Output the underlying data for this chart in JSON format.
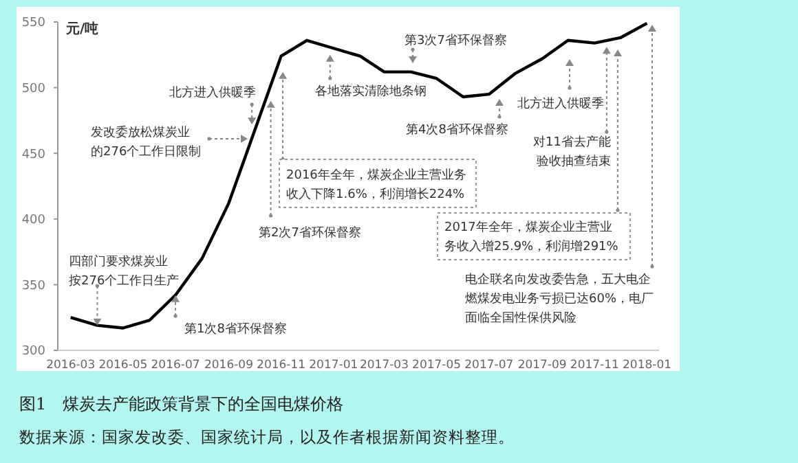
{
  "chart_data": {
    "type": "line",
    "title": "图1　煤炭去产能政策背景下的全国电煤价格",
    "ylabel": "元/吨",
    "x": [
      "2016-03",
      "2016-04",
      "2016-05",
      "2016-06",
      "2016-07",
      "2016-08",
      "2016-09",
      "2016-10",
      "2016-11",
      "2016-12",
      "2017-01",
      "2017-02",
      "2017-03",
      "2017-04",
      "2017-05",
      "2017-06",
      "2017-07",
      "2017-08",
      "2017-09",
      "2017-10",
      "2017-11",
      "2017-12",
      "2018-01"
    ],
    "series": [
      {
        "color": "#000000",
        "values": [
          325,
          319,
          317,
          323,
          342,
          370,
          412,
          467,
          524,
          536,
          530,
          524,
          512,
          512,
          507,
          493,
          495,
          511,
          522,
          536,
          534,
          538,
          549
        ]
      }
    ],
    "xlim": [
      "2016-02-15",
      "2018-01-15"
    ],
    "xticks": [
      "2016-03",
      "2016-05",
      "2016-07",
      "2016-09",
      "2016-11",
      "2017-01",
      "2017-03",
      "2017-05",
      "2017-07",
      "2017-09",
      "2017-11",
      "2018-01"
    ],
    "ylim": [
      300,
      550
    ],
    "yticks": [
      300,
      350,
      400,
      450,
      500,
      550
    ],
    "marker": "none",
    "line_style": "solid",
    "annotations": [
      {
        "text": "四部门要求煤炭业按276个工作日生产",
        "x": "2016-04",
        "y": 319
      },
      {
        "text": "第1次8省环保督察",
        "x": "2016-07",
        "y": 342
      },
      "发改委放松煤炭业的276个工作日限制",
      {
        "text": "北方进入供暖季",
        "x": "2016-09-28",
        "y": 472
      },
      {
        "text": "第2次7省环保督察",
        "x": "2016-10-20",
        "y": 490
      },
      {
        "text": "2016年全年，煤炭企业主营业务收入下降1.6%，利润增长224%",
        "x": "2016-11-03",
        "y": 512
      },
      {
        "text": "各地落实清除地条钢",
        "x": "2016-12-28",
        "y": 525
      },
      "第3次7省环保督察",
      "第4次8省环保督察",
      "北方进入供暖季",
      {
        "text": "对11省去产能验收抽查结束",
        "x": "2017-11-15",
        "y": 531
      },
      "2017年全年，煤炭企业主营业务收入增25.9%，利润增291%",
      "电企联名向发改委告急，五大电企燃煤发电业务亏损已达60%，电厂面临全国性保供风险",
      "数据来源：国家发改委、国家统计局，以及作者根据新闻资料整理。"
    ]
  }
}
